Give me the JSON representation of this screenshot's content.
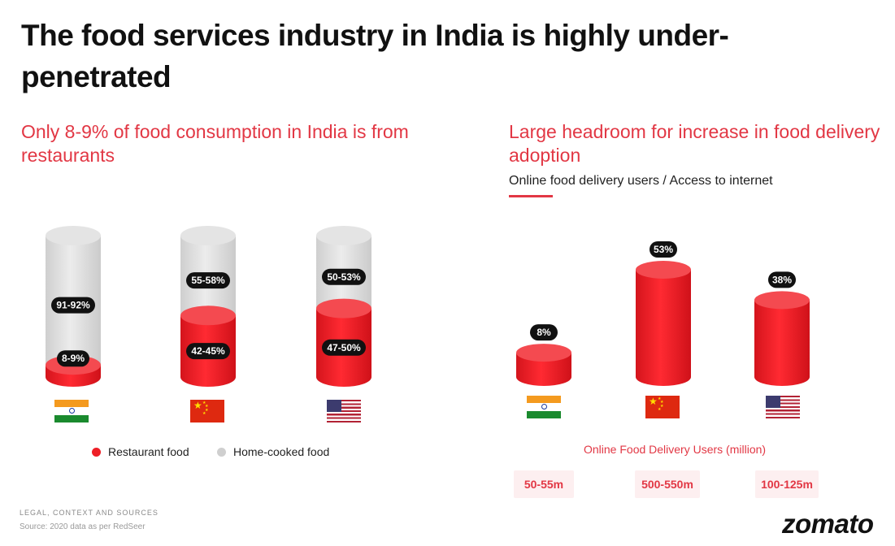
{
  "page": {
    "title": "The food services industry in India is highly under-penetrated",
    "source_label": "LEGAL, CONTEXT AND SOURCES",
    "source_text": "Source: 2020 data as per RedSeer",
    "logo": "zomato",
    "colors": {
      "accent": "#e23744",
      "restaurant": "#ee1f26",
      "home": "#d9d9d9",
      "pill": "#111111"
    }
  },
  "chart_data": [
    {
      "type": "bar",
      "subtype": "stacked-cylinder",
      "title": "Only 8-9% of food consumption in India is from restaurants",
      "categories": [
        "India",
        "China",
        "USA"
      ],
      "series": [
        {
          "name": "Restaurant food",
          "values": [
            8.5,
            43.5,
            48.5
          ],
          "labels": [
            "8-9%",
            "42-45%",
            "47-50%"
          ]
        },
        {
          "name": "Home-cooked food",
          "values": [
            91.5,
            56.5,
            51.5
          ],
          "labels": [
            "91-92%",
            "55-58%",
            "50-53%"
          ]
        }
      ],
      "ylim": [
        0,
        100
      ],
      "legend": "bottom",
      "flags": [
        "india-flag-icon",
        "china-flag-icon",
        "usa-flag-icon"
      ]
    },
    {
      "type": "bar",
      "subtype": "cylinder",
      "title": "Large headroom for increase in food delivery adoption",
      "metric": "Online food delivery users / Access to internet",
      "categories": [
        "India",
        "China",
        "USA"
      ],
      "values": [
        8,
        53,
        38
      ],
      "labels": [
        "8%",
        "53%",
        "38%"
      ],
      "ylim": [
        0,
        53
      ],
      "flags": [
        "india-flag-icon",
        "china-flag-icon",
        "usa-flag-icon"
      ],
      "users_title": "Online Food Delivery Users (million)",
      "users": [
        "50-55m",
        "500-550m",
        "100-125m"
      ]
    }
  ]
}
